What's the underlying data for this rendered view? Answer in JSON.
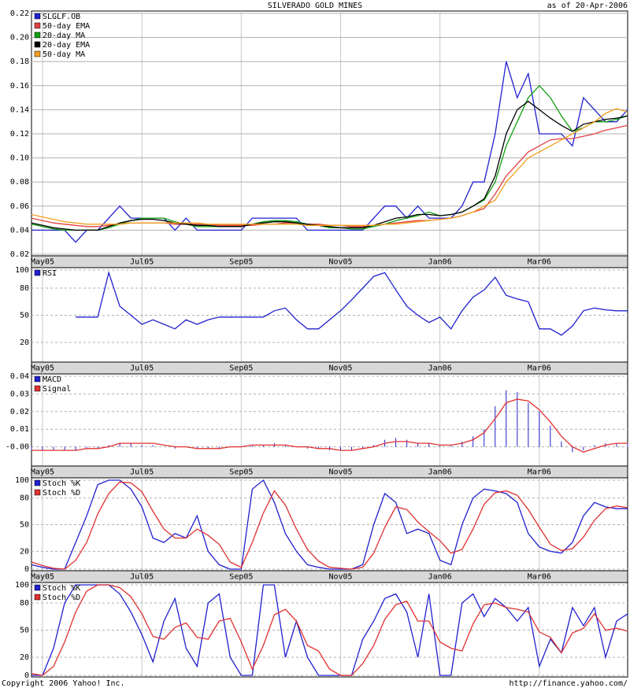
{
  "title": "SILVERADO GOLD MINES",
  "date_note": "as of 20-Apr-2006",
  "footer_left": "Copyright 2006 Yahoo! Inc.",
  "footer_right": "http://finance.yahoo.com/",
  "chart_data": [
    {
      "type": "line",
      "grid_style": "solid",
      "categories": [
        null,
        "May05",
        null,
        null,
        null,
        null,
        null,
        null,
        null,
        null,
        "Jul05",
        null,
        null,
        null,
        null,
        null,
        null,
        null,
        null,
        "Sep05",
        null,
        null,
        null,
        null,
        null,
        null,
        null,
        null,
        "Nov05",
        null,
        null,
        null,
        null,
        null,
        null,
        null,
        null,
        "Jan06",
        null,
        null,
        null,
        null,
        null,
        null,
        null,
        null,
        "Mar06",
        null,
        null,
        null,
        null,
        null,
        null,
        null,
        null
      ],
      "ylim": [
        0.02,
        0.22
      ],
      "yticks": [
        0.02,
        0.04,
        0.06,
        0.08,
        {
          "value": 0.1,
          "label": "0.10"
        },
        0.12,
        0.14,
        0.16,
        0.18,
        {
          "value": 0.2,
          "label": "0.20"
        },
        0.22
      ],
      "series": [
        {
          "name": "SLGLF.OB",
          "color": "#2020d0",
          "values": [
            0.04,
            0.04,
            0.04,
            0.04,
            0.03,
            0.04,
            0.04,
            0.05,
            0.06,
            0.05,
            0.05,
            0.05,
            0.05,
            0.04,
            0.05,
            0.04,
            0.04,
            0.04,
            0.04,
            0.04,
            0.05,
            0.05,
            0.05,
            0.05,
            0.05,
            0.04,
            0.04,
            0.04,
            0.04,
            0.04,
            0.04,
            0.05,
            0.06,
            0.06,
            0.05,
            0.06,
            0.05,
            0.05,
            0.05,
            0.06,
            0.08,
            0.08,
            0.12,
            0.18,
            0.15,
            0.17,
            0.12,
            0.12,
            0.12,
            0.11,
            0.15,
            0.14,
            0.13,
            0.13,
            0.14
          ]
        },
        {
          "name": "50-day EMA",
          "color": "#e04040",
          "values": [
            0.05,
            0.048,
            0.046,
            0.045,
            0.044,
            0.043,
            0.043,
            0.044,
            0.045,
            0.046,
            0.046,
            0.046,
            0.046,
            0.045,
            0.045,
            0.045,
            0.045,
            0.044,
            0.044,
            0.044,
            0.044,
            0.045,
            0.045,
            0.046,
            0.046,
            0.045,
            0.045,
            0.044,
            0.044,
            0.043,
            0.043,
            0.044,
            0.045,
            0.046,
            0.047,
            0.048,
            0.048,
            0.049,
            0.05,
            0.052,
            0.055,
            0.058,
            0.07,
            0.085,
            0.095,
            0.105,
            0.11,
            0.115,
            0.116,
            0.116,
            0.118,
            0.12,
            0.123,
            0.125,
            0.127
          ]
        },
        {
          "name": "20-day MA",
          "color": "#10a010",
          "values": [
            0.045,
            0.043,
            0.041,
            0.04,
            0.04,
            0.04,
            0.04,
            0.042,
            0.045,
            0.048,
            0.05,
            0.05,
            0.05,
            0.047,
            0.045,
            0.043,
            0.043,
            0.043,
            0.043,
            0.043,
            0.045,
            0.047,
            0.048,
            0.048,
            0.047,
            0.045,
            0.044,
            0.042,
            0.042,
            0.041,
            0.041,
            0.043,
            0.045,
            0.048,
            0.05,
            0.052,
            0.055,
            0.052,
            0.053,
            0.055,
            0.06,
            0.065,
            0.08,
            0.11,
            0.13,
            0.15,
            0.16,
            0.15,
            0.135,
            0.122,
            0.125,
            0.13,
            0.13,
            0.132,
            0.135
          ]
        },
        {
          "name": "20-day EMA",
          "color": "#000000",
          "values": [
            0.046,
            0.044,
            0.042,
            0.041,
            0.04,
            0.04,
            0.04,
            0.043,
            0.046,
            0.048,
            0.049,
            0.049,
            0.048,
            0.046,
            0.045,
            0.044,
            0.044,
            0.043,
            0.043,
            0.043,
            0.045,
            0.046,
            0.047,
            0.047,
            0.046,
            0.045,
            0.044,
            0.043,
            0.042,
            0.042,
            0.042,
            0.044,
            0.047,
            0.05,
            0.051,
            0.053,
            0.053,
            0.052,
            0.053,
            0.055,
            0.06,
            0.066,
            0.085,
            0.12,
            0.14,
            0.147,
            0.14,
            0.133,
            0.127,
            0.122,
            0.128,
            0.13,
            0.132,
            0.133,
            0.135
          ]
        },
        {
          "name": "50-day MA",
          "color": "#f0a020",
          "values": [
            0.053,
            0.051,
            0.049,
            0.047,
            0.046,
            0.045,
            0.045,
            0.045,
            0.045,
            0.046,
            0.046,
            0.046,
            0.046,
            0.046,
            0.046,
            0.046,
            0.045,
            0.045,
            0.045,
            0.045,
            0.045,
            0.045,
            0.045,
            0.045,
            0.045,
            0.044,
            0.044,
            0.044,
            0.044,
            0.044,
            0.044,
            0.044,
            0.045,
            0.045,
            0.046,
            0.047,
            0.048,
            0.049,
            0.05,
            0.052,
            0.055,
            0.06,
            0.065,
            0.08,
            0.09,
            0.1,
            0.105,
            0.11,
            0.115,
            0.12,
            0.125,
            0.13,
            0.137,
            0.141,
            0.138
          ]
        }
      ]
    },
    {
      "type": "line",
      "grid_style": "dashed",
      "ylim": [
        0,
        100
      ],
      "yticks": [
        100,
        80,
        50,
        20
      ],
      "series": [
        {
          "name": "RSI",
          "color": "#2020d0",
          "values": [
            null,
            null,
            null,
            null,
            48,
            48,
            48,
            97,
            60,
            50,
            40,
            45,
            40,
            35,
            45,
            40,
            45,
            48,
            48,
            48,
            48,
            48,
            55,
            58,
            45,
            35,
            35,
            45,
            55,
            67,
            80,
            93,
            97,
            78,
            60,
            50,
            42,
            48,
            35,
            55,
            70,
            78,
            92,
            72,
            68,
            65,
            35,
            35,
            28,
            38,
            55,
            58,
            56,
            55,
            55
          ]
        }
      ]
    },
    {
      "type": "line",
      "grid_style": "dashed",
      "ylim": [
        -0.01,
        0.04
      ],
      "yticks": [
        0.04,
        0.03,
        0.02,
        0.01,
        {
          "value": 0,
          "label": "-0.00"
        }
      ],
      "series": [
        {
          "name": "MACD",
          "color": "#2020d0",
          "type": "bar",
          "values": [
            -0.002,
            -0.002,
            -0.002,
            -0.002,
            -0.002,
            -0.001,
            -0.001,
            0.001,
            0.002,
            0.002,
            0.001,
            0.001,
            0,
            -0.001,
            0,
            -0.001,
            -0.001,
            -0.001,
            0,
            0,
            0.001,
            0.001,
            0.002,
            0.001,
            0,
            -0.001,
            -0.001,
            -0.002,
            -0.002,
            -0.002,
            -0.001,
            0.001,
            0.004,
            0.005,
            0.004,
            0.002,
            0.002,
            0.001,
            0.001,
            0.003,
            0.006,
            0.01,
            0.023,
            0.032,
            0.031,
            0.025,
            0.02,
            0.012,
            0.003,
            -0.003,
            -0.002,
            0.001,
            0.002,
            0.002,
            0.002
          ]
        },
        {
          "name": "Signal",
          "color": "#e03030",
          "values": [
            -0.002,
            -0.002,
            -0.002,
            -0.002,
            -0.002,
            -0.001,
            -0.001,
            0,
            0.002,
            0.002,
            0.002,
            0.002,
            0.001,
            0,
            0,
            -0.001,
            -0.001,
            -0.001,
            0,
            0,
            0.001,
            0.001,
            0.001,
            0.001,
            0,
            0,
            -0.001,
            -0.001,
            -0.002,
            -0.002,
            -0.001,
            0,
            0.002,
            0.003,
            0.003,
            0.002,
            0.002,
            0.001,
            0.001,
            0.002,
            0.004,
            0.008,
            0.016,
            0.025,
            0.027,
            0.026,
            0.021,
            0.014,
            0.006,
            0,
            -0.003,
            -0.001,
            0.001,
            0.002,
            0.002
          ]
        }
      ]
    },
    {
      "type": "line",
      "grid_style": "dashed",
      "ylim": [
        0,
        100
      ],
      "yticks": [
        100,
        80,
        50,
        20,
        0
      ],
      "series": [
        {
          "name": "Stoch %K",
          "color": "#2020d0",
          "values": [
            5,
            2,
            0,
            0,
            30,
            60,
            95,
            100,
            100,
            90,
            70,
            35,
            30,
            40,
            35,
            60,
            20,
            5,
            0,
            0,
            90,
            100,
            75,
            40,
            20,
            5,
            2,
            0,
            0,
            0,
            5,
            50,
            85,
            75,
            40,
            45,
            40,
            10,
            5,
            50,
            80,
            90,
            88,
            85,
            75,
            40,
            25,
            20,
            18,
            30,
            60,
            75,
            70,
            68,
            68
          ]
        },
        {
          "name": "Stoch %D",
          "color": "#e03030",
          "values": [
            8,
            4,
            1,
            0,
            10,
            30,
            62,
            85,
            98,
            97,
            87,
            65,
            45,
            35,
            35,
            45,
            38,
            28,
            8,
            2,
            30,
            63,
            88,
            72,
            45,
            22,
            9,
            2,
            1,
            0,
            2,
            18,
            47,
            70,
            67,
            53,
            42,
            32,
            18,
            22,
            45,
            73,
            86,
            88,
            83,
            67,
            47,
            28,
            21,
            23,
            36,
            55,
            68,
            71,
            69
          ]
        }
      ]
    },
    {
      "type": "line",
      "grid_style": "dashed",
      "ylim": [
        0,
        100
      ],
      "yticks": [
        100,
        80,
        50,
        20,
        0
      ],
      "series": [
        {
          "name": "Stoch %K",
          "color": "#2020d0",
          "values": [
            0,
            0,
            30,
            80,
            100,
            100,
            100,
            100,
            90,
            70,
            45,
            15,
            60,
            85,
            30,
            10,
            80,
            90,
            20,
            0,
            0,
            100,
            100,
            20,
            60,
            20,
            0,
            0,
            0,
            0,
            40,
            60,
            85,
            90,
            70,
            20,
            90,
            0,
            0,
            80,
            90,
            65,
            85,
            75,
            60,
            75,
            10,
            40,
            25,
            75,
            55,
            75,
            20,
            60,
            68
          ]
        },
        {
          "name": "Stoch %D",
          "color": "#e03030",
          "values": [
            2,
            0,
            10,
            37,
            70,
            93,
            100,
            100,
            97,
            87,
            68,
            43,
            40,
            53,
            58,
            42,
            40,
            60,
            63,
            37,
            7,
            33,
            67,
            73,
            60,
            33,
            27,
            7,
            0,
            0,
            13,
            33,
            62,
            78,
            82,
            60,
            60,
            37,
            30,
            27,
            57,
            78,
            80,
            75,
            73,
            70,
            48,
            42,
            25,
            47,
            52,
            68,
            50,
            52,
            49
          ]
        }
      ]
    }
  ]
}
